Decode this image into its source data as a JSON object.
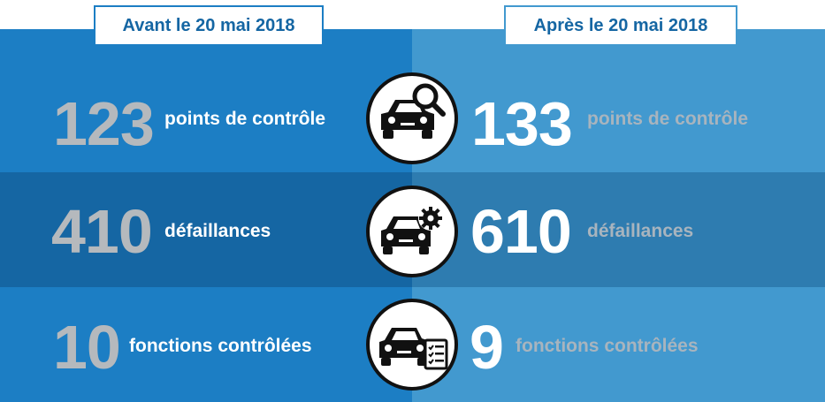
{
  "headers": {
    "before": "Avant le 20 mai 2018",
    "after": "Après le 20 mai 2018"
  },
  "rows": [
    {
      "icon": "car-magnifier-icon",
      "before_value": "123",
      "before_label": "points de contrôle",
      "after_value": "133",
      "after_label": "points de contrôle"
    },
    {
      "icon": "car-gear-icon",
      "before_value": "410",
      "before_label": "défaillances",
      "after_value": "610",
      "after_label": "défaillances"
    },
    {
      "icon": "car-checklist-icon",
      "before_value": "10",
      "before_label": "fonctions contrôlées",
      "after_value": "9",
      "after_label": "fonctions contrôlées"
    }
  ],
  "colors": {
    "left_blue": "#1c7ec4",
    "left_blue_dark": "#1566a3",
    "right_blue": "#4299cf",
    "right_blue_dark": "#2e7cb0",
    "number_grey": "#b5b9bd",
    "label_grey": "#a8b4be"
  }
}
